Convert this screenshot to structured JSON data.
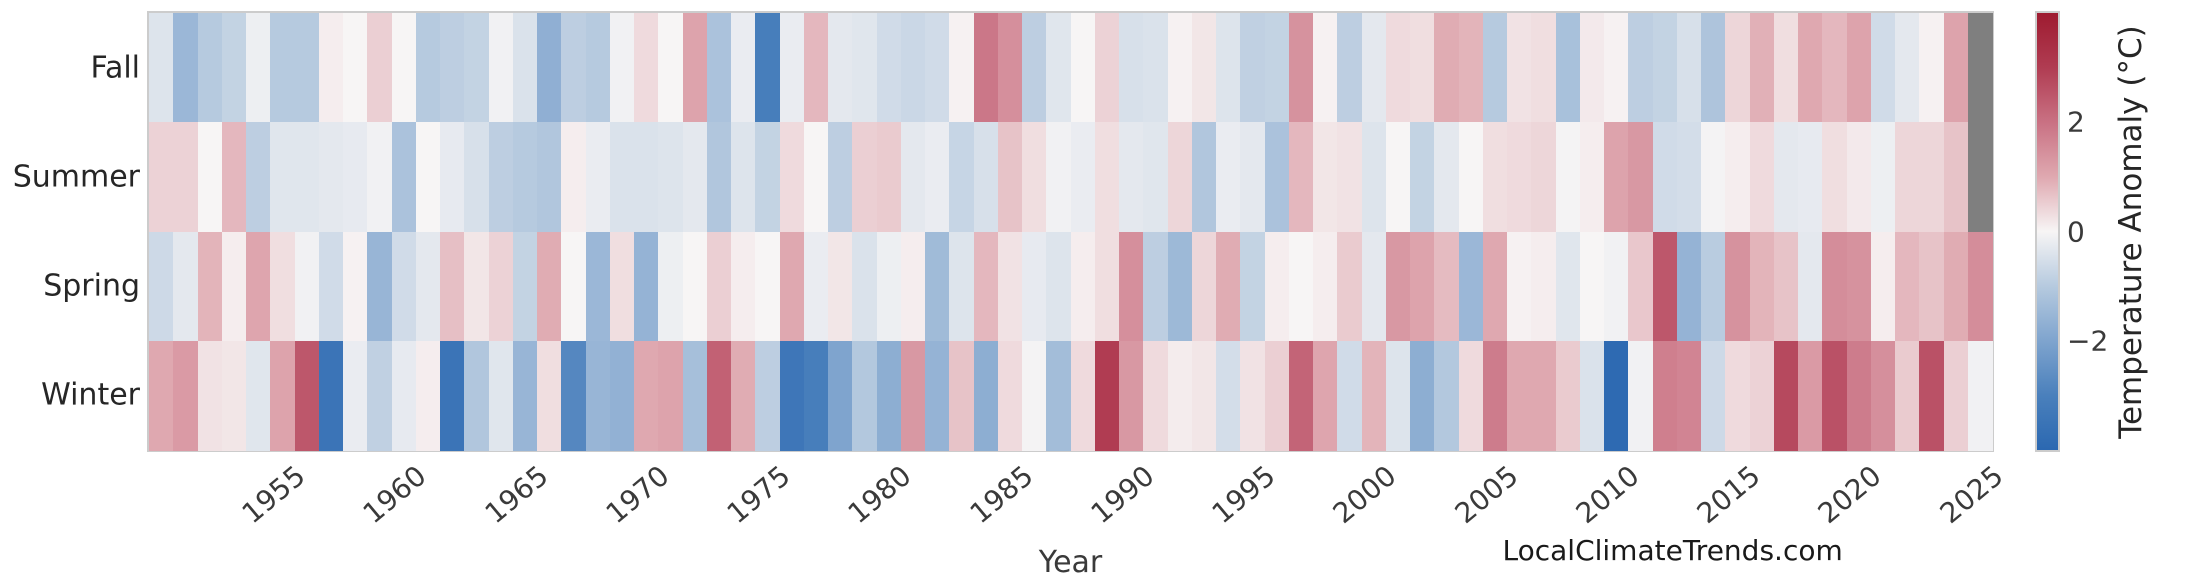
{
  "chart_data": {
    "type": "heatmap",
    "xlabel": "Year",
    "rows": [
      "Fall",
      "Summer",
      "Spring",
      "Winter"
    ],
    "x": [
      1950,
      1951,
      1952,
      1953,
      1954,
      1955,
      1956,
      1957,
      1958,
      1959,
      1960,
      1961,
      1962,
      1963,
      1964,
      1965,
      1966,
      1967,
      1968,
      1969,
      1970,
      1971,
      1972,
      1973,
      1974,
      1975,
      1976,
      1977,
      1978,
      1979,
      1980,
      1981,
      1982,
      1983,
      1984,
      1985,
      1986,
      1987,
      1988,
      1989,
      1990,
      1991,
      1992,
      1993,
      1994,
      1995,
      1996,
      1997,
      1998,
      1999,
      2000,
      2001,
      2002,
      2003,
      2004,
      2005,
      2006,
      2007,
      2008,
      2009,
      2010,
      2011,
      2012,
      2013,
      2014,
      2015,
      2016,
      2017,
      2018,
      2019,
      2020,
      2021,
      2022,
      2023,
      2024,
      2025
    ],
    "xticks": [
      1955,
      1960,
      1965,
      1970,
      1975,
      1980,
      1985,
      1990,
      1995,
      2000,
      2005,
      2010,
      2015,
      2020,
      2025
    ],
    "series": [
      {
        "name": "Fall",
        "values": [
          -0.4,
          -1.5,
          -1.0,
          -0.8,
          -0.15,
          -1.0,
          -1.0,
          0.1,
          0.0,
          0.5,
          0.0,
          -1.0,
          -0.9,
          -0.8,
          -0.1,
          -0.45,
          -1.7,
          -0.9,
          -1.0,
          -0.1,
          0.35,
          0.0,
          1.1,
          -1.2,
          -0.2,
          -3.1,
          -0.2,
          0.8,
          -0.3,
          -0.35,
          -0.6,
          -0.7,
          -0.6,
          0.05,
          1.9,
          1.45,
          -0.9,
          -0.35,
          0.0,
          0.45,
          -0.5,
          -0.45,
          0.05,
          0.2,
          -0.4,
          -0.85,
          -0.8,
          1.4,
          0.05,
          -0.9,
          -0.3,
          0.35,
          0.3,
          0.95,
          0.85,
          -1.0,
          0.25,
          0.3,
          -1.25,
          0.15,
          0.05,
          -0.9,
          -0.8,
          -0.5,
          -1.15,
          0.4,
          0.9,
          0.3,
          1.0,
          0.8,
          1.1,
          -0.6,
          -0.3,
          0.05,
          1.1,
          null
        ]
      },
      {
        "name": "Summer",
        "values": [
          0.45,
          0.45,
          0.0,
          0.8,
          -0.9,
          -0.35,
          -0.35,
          -0.3,
          -0.25,
          -0.1,
          -1.2,
          0.0,
          -0.25,
          -0.5,
          -0.9,
          -1.0,
          -1.1,
          0.1,
          -0.2,
          -0.45,
          -0.45,
          -0.4,
          -0.3,
          -1.1,
          -0.4,
          -0.8,
          0.35,
          0.0,
          -0.9,
          0.5,
          0.55,
          -0.3,
          -0.2,
          -0.75,
          -0.5,
          0.65,
          0.3,
          -0.1,
          -0.2,
          0.3,
          -0.3,
          -0.35,
          0.4,
          -1.1,
          -0.2,
          -0.3,
          -1.2,
          0.8,
          0.2,
          0.25,
          -0.4,
          0.0,
          -0.8,
          -0.3,
          0.0,
          0.3,
          0.35,
          0.4,
          -0.05,
          0.1,
          1.1,
          1.3,
          -0.6,
          -0.55,
          -0.05,
          0.1,
          0.35,
          -0.3,
          -0.25,
          0.3,
          0.15,
          -0.15,
          0.4,
          0.4,
          0.65,
          null
        ]
      },
      {
        "name": "Spring",
        "values": [
          -0.65,
          -0.3,
          0.85,
          0.1,
          1.05,
          0.3,
          -0.1,
          -0.6,
          0.05,
          -1.55,
          -0.6,
          -0.3,
          0.7,
          0.2,
          0.45,
          -0.8,
          0.95,
          0.0,
          -1.5,
          0.3,
          -1.6,
          -0.15,
          0.0,
          0.5,
          0.1,
          0.0,
          1.0,
          -0.2,
          0.2,
          -0.45,
          -0.15,
          0.1,
          -1.4,
          -0.4,
          0.8,
          0.25,
          -0.25,
          -0.4,
          0.1,
          0.3,
          1.45,
          -0.9,
          -1.45,
          0.4,
          0.95,
          -0.8,
          0.1,
          0.0,
          0.1,
          0.55,
          -0.3,
          1.3,
          1.1,
          0.75,
          -1.5,
          1.0,
          0.05,
          0.1,
          -0.35,
          0.0,
          -0.1,
          0.6,
          2.5,
          -1.6,
          -0.95,
          1.4,
          0.85,
          0.65,
          -0.3,
          1.5,
          1.4,
          0.1,
          0.8,
          0.65,
          0.95,
          1.5
        ]
      },
      {
        "name": "Winter",
        "values": [
          1.0,
          1.25,
          0.25,
          0.2,
          -0.35,
          1.1,
          2.5,
          -3.5,
          -0.2,
          -0.85,
          -0.25,
          0.1,
          -3.5,
          -1.1,
          -0.35,
          -1.55,
          0.3,
          -2.8,
          -1.55,
          -1.65,
          1.0,
          1.1,
          -1.3,
          2.3,
          0.95,
          -0.9,
          -3.4,
          -3.1,
          -2.0,
          -1.05,
          -1.75,
          1.3,
          -1.6,
          0.65,
          -1.75,
          0.35,
          -0.05,
          -1.35,
          0.35,
          3.0,
          1.3,
          0.35,
          0.12,
          0.2,
          -0.55,
          0.25,
          0.5,
          2.25,
          1.05,
          -0.6,
          0.85,
          -0.4,
          -1.75,
          -1.05,
          0.35,
          1.8,
          1.0,
          1.0,
          0.55,
          -0.45,
          -3.9,
          -0.1,
          1.75,
          1.65,
          -0.65,
          0.35,
          0.45,
          2.75,
          1.25,
          2.6,
          1.8,
          1.45,
          0.55,
          2.6,
          0.5,
          -0.1
        ]
      }
    ],
    "colorbar": {
      "label": "Temperature Anomaly (°C)",
      "vmin": -4,
      "vmax": 4,
      "ticks": [
        {
          "value": 2,
          "label": "2"
        },
        {
          "value": 0,
          "label": "0"
        },
        {
          "value": -2,
          "label": "−2"
        }
      ],
      "gradient_stops": [
        {
          "value": -4,
          "color": "#2b68b1"
        },
        {
          "value": -3,
          "color": "#4a80bc"
        },
        {
          "value": -2,
          "color": "#7fa4ce"
        },
        {
          "value": -1,
          "color": "#b6cadf"
        },
        {
          "value": 0,
          "color": "#f7f5f5"
        },
        {
          "value": 1,
          "color": "#dfa8b0"
        },
        {
          "value": 2,
          "color": "#c97183"
        },
        {
          "value": 3,
          "color": "#b03c52"
        },
        {
          "value": 4,
          "color": "#9e1b30"
        }
      ],
      "nan_color": "#7f7f7f"
    },
    "watermark": "LocalClimateTrends.com",
    "grid": false,
    "legend_position": "right-colorbar"
  }
}
